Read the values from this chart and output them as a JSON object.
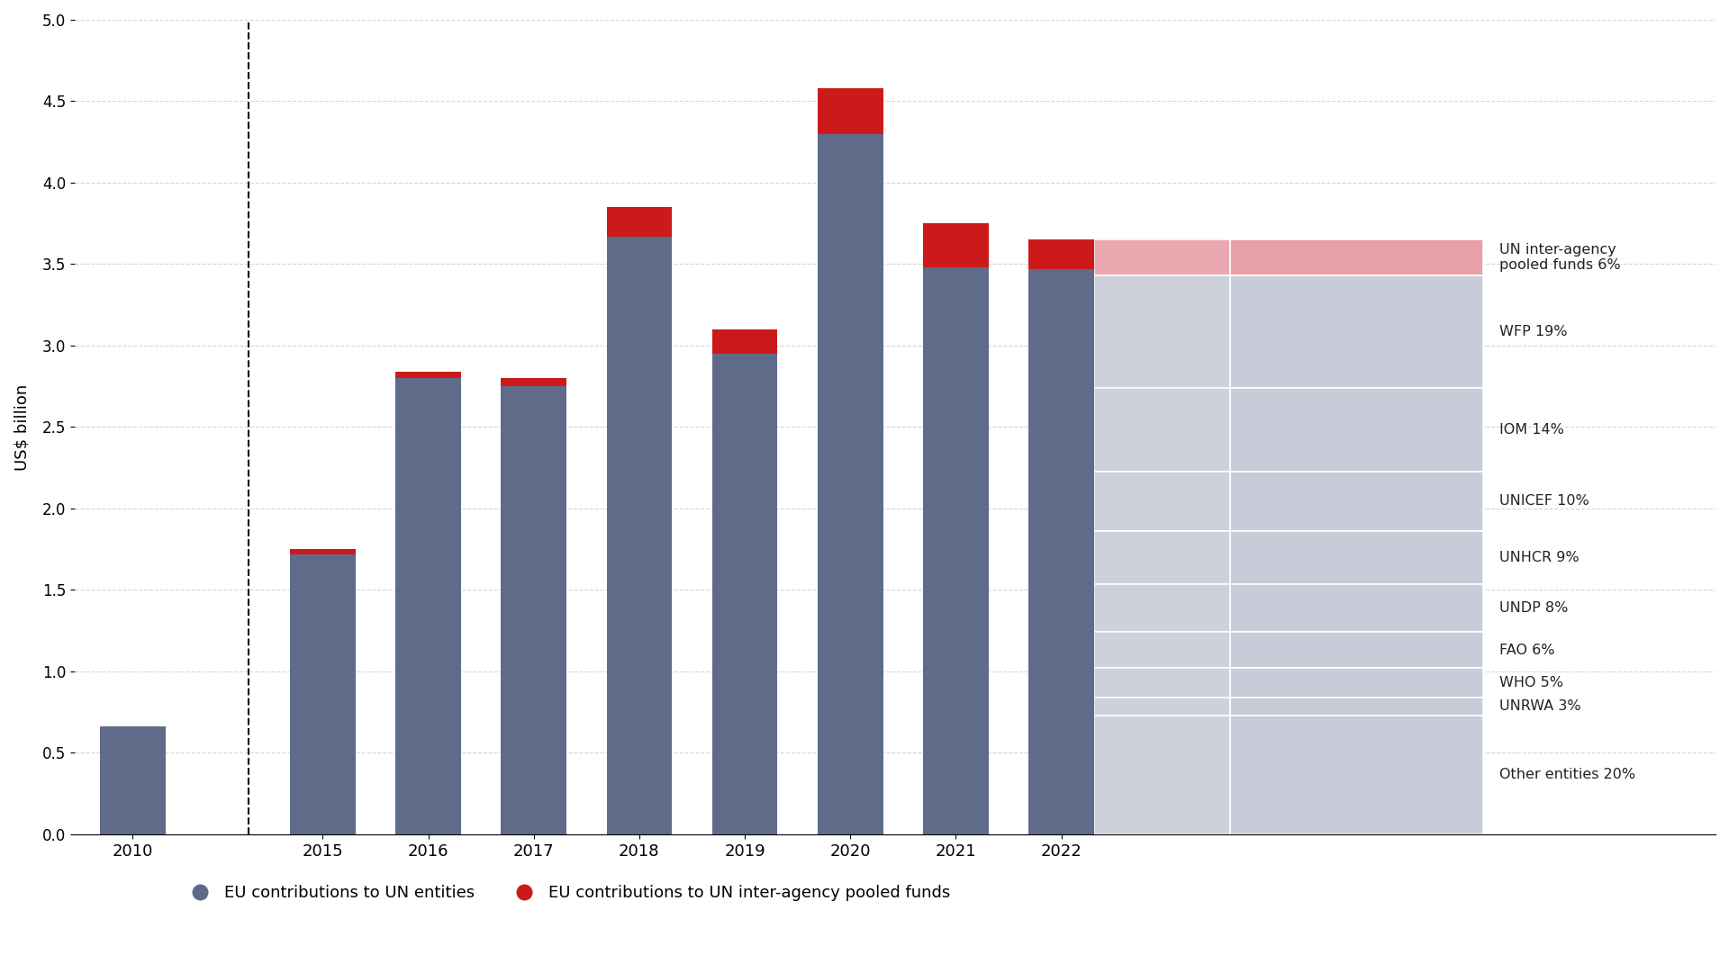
{
  "categories": [
    "2010",
    "2015",
    "2016",
    "2017",
    "2018",
    "2019",
    "2020",
    "2021",
    "2022"
  ],
  "eu_entities": [
    0.66,
    1.72,
    2.8,
    2.75,
    3.67,
    2.95,
    4.3,
    3.48,
    3.47
  ],
  "eu_pooled": [
    0.0,
    0.03,
    0.04,
    0.05,
    0.18,
    0.15,
    0.28,
    0.27,
    0.18
  ],
  "bar_color_entities": "#606b8a",
  "bar_color_pooled": "#cc1a1a",
  "background_color": "#ffffff",
  "ylabel": "US$ billion",
  "ylim": [
    0,
    5.0
  ],
  "yticks": [
    0,
    0.5,
    1.0,
    1.5,
    2.0,
    2.5,
    3.0,
    3.5,
    4.0,
    4.5,
    5.0
  ],
  "right_labels": [
    "UN inter-agency\npooled funds 6%",
    "WFP 19%",
    "IOM 14%",
    "UNICEF 10%",
    "UNHCR 9%",
    "UNDP 8%",
    "FAO 6%",
    "WHO 5%",
    "UNRWA 3%",
    "Other entities 20%"
  ],
  "percentages": [
    0.06,
    0.19,
    0.14,
    0.1,
    0.09,
    0.08,
    0.06,
    0.05,
    0.03,
    0.2
  ],
  "fan_colors": [
    "#e8a0a8",
    "#c8ccd8",
    "#c8ccd8",
    "#c8ccd8",
    "#c8ccd8",
    "#c8ccd8",
    "#c8ccd8",
    "#c8ccd8",
    "#c8ccd8",
    "#c8ccd8"
  ],
  "legend_labels": [
    "EU contributions to UN entities",
    "EU contributions to UN inter-agency pooled funds"
  ],
  "legend_colors": [
    "#606b8a",
    "#cc1a1a"
  ]
}
